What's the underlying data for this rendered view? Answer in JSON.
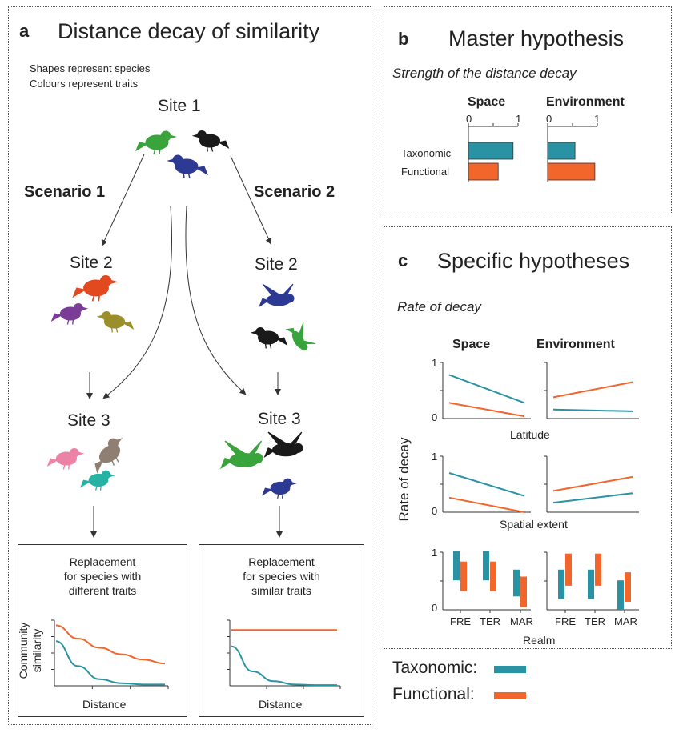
{
  "colors": {
    "taxonomic": "#2a93a3",
    "functional": "#f2652b",
    "species_green": "#39a33c",
    "species_navy": "#2c3a93",
    "species_black": "#1a1a1a",
    "species_red": "#e2491f",
    "species_purple": "#7a3c96",
    "species_olive": "#9a8f2a",
    "species_pink": "#ec82a6",
    "species_grey": "#8f7e72",
    "species_teal": "#27b2a4"
  },
  "panel_a": {
    "letter": "a",
    "title": "Distance decay of similarity",
    "note_shapes": "Shapes represent species",
    "note_colours": "Colours represent traits",
    "site1": "Site 1",
    "scenario1": "Scenario 1",
    "scenario2": "Scenario 2",
    "site2": "Site 2",
    "site3": "Site 3",
    "box1": {
      "title_lines": [
        "Replacement",
        "for species with",
        "different traits"
      ],
      "ylabel_lines": [
        "Community",
        "similarity"
      ],
      "xlabel": "Distance"
    },
    "box2": {
      "title_lines": [
        "Replacement",
        "for species with",
        "similar traits"
      ],
      "xlabel": "Distance"
    }
  },
  "panel_b": {
    "letter": "b",
    "title": "Master hypothesis",
    "subtitle": "Strength of the distance decay",
    "col_space": "Space",
    "col_env": "Environment",
    "row_tax": "Taxonomic",
    "row_fun": "Functional",
    "tick0": "0",
    "tick1": "1"
  },
  "panel_c": {
    "letter": "c",
    "title": "Specific hypotheses",
    "subtitle": "Rate of decay",
    "col_space": "Space",
    "col_env": "Environment",
    "ylabel": "Rate of decay",
    "xlabel_latitude": "Latitude",
    "xlabel_extent": "Spatial extent",
    "xlabel_realm": "Realm",
    "realms": [
      "FRE",
      "TER",
      "MAR"
    ],
    "tick0": "0",
    "tick1": "1"
  },
  "legend": {
    "taxonomic": "Taxonomic:",
    "functional": "Functional:"
  },
  "chart_data": [
    {
      "type": "line",
      "panel": "a",
      "scenario": "Replacement for species with different traits",
      "ylabel": "Community similarity",
      "xlabel": "Distance",
      "x": [
        0,
        0.2,
        0.4,
        0.6,
        0.8,
        1.0
      ],
      "series": [
        {
          "name": "Functional",
          "values": [
            0.92,
            0.72,
            0.58,
            0.48,
            0.4,
            0.34
          ]
        },
        {
          "name": "Taxonomic",
          "values": [
            0.68,
            0.3,
            0.1,
            0.04,
            0.02,
            0.02
          ]
        }
      ]
    },
    {
      "type": "line",
      "panel": "a",
      "scenario": "Replacement for species with similar traits",
      "xlabel": "Distance",
      "x": [
        0,
        0.2,
        0.4,
        0.6,
        0.8,
        1.0
      ],
      "series": [
        {
          "name": "Functional",
          "values": [
            0.85,
            0.85,
            0.85,
            0.85,
            0.85,
            0.85
          ]
        },
        {
          "name": "Taxonomic",
          "values": [
            0.6,
            0.22,
            0.07,
            0.02,
            0.01,
            0.01
          ]
        }
      ]
    },
    {
      "type": "bar",
      "panel": "b",
      "facet": "Space",
      "categories": [
        "Taxonomic",
        "Functional"
      ],
      "values": [
        0.9,
        0.6
      ],
      "xlim": [
        0,
        1
      ]
    },
    {
      "type": "bar",
      "panel": "b",
      "facet": "Environment",
      "categories": [
        "Taxonomic",
        "Functional"
      ],
      "values": [
        0.55,
        0.95
      ],
      "xlim": [
        0,
        1
      ]
    },
    {
      "type": "line",
      "panel": "c",
      "facet": "Space",
      "xlabel": "Latitude",
      "ylim": [
        0,
        1
      ],
      "series": [
        {
          "name": "Taxonomic",
          "start": 0.78,
          "end": 0.28
        },
        {
          "name": "Functional",
          "start": 0.28,
          "end": 0.04
        }
      ]
    },
    {
      "type": "line",
      "panel": "c",
      "facet": "Environment",
      "xlabel": "Latitude",
      "ylim": [
        0,
        1
      ],
      "series": [
        {
          "name": "Taxonomic",
          "start": 0.16,
          "end": 0.13
        },
        {
          "name": "Functional",
          "start": 0.38,
          "end": 0.65
        }
      ]
    },
    {
      "type": "line",
      "panel": "c",
      "facet": "Space",
      "xlabel": "Spatial extent",
      "ylim": [
        0,
        1
      ],
      "series": [
        {
          "name": "Taxonomic",
          "start": 0.7,
          "end": 0.29
        },
        {
          "name": "Functional",
          "start": 0.26,
          "end": 0.0
        }
      ]
    },
    {
      "type": "line",
      "panel": "c",
      "facet": "Environment",
      "xlabel": "Spatial extent",
      "ylim": [
        0,
        1
      ],
      "series": [
        {
          "name": "Taxonomic",
          "start": 0.17,
          "end": 0.34
        },
        {
          "name": "Functional",
          "start": 0.38,
          "end": 0.63
        }
      ]
    },
    {
      "type": "bar",
      "panel": "c",
      "facet": "Space",
      "xlabel": "Realm",
      "categories": [
        "FRE",
        "TER",
        "MAR"
      ],
      "ylim": [
        0,
        1
      ],
      "series": [
        {
          "name": "Taxonomic",
          "ranges": [
            [
              0.55,
              1.1
            ],
            [
              0.55,
              1.1
            ],
            [
              0.25,
              0.75
            ]
          ]
        },
        {
          "name": "Functional",
          "ranges": [
            [
              0.35,
              0.9
            ],
            [
              0.35,
              0.9
            ],
            [
              0.05,
              0.62
            ]
          ]
        }
      ]
    },
    {
      "type": "bar",
      "panel": "c",
      "facet": "Environment",
      "xlabel": "Realm",
      "categories": [
        "FRE",
        "TER",
        "MAR"
      ],
      "ylim": [
        0,
        1
      ],
      "series": [
        {
          "name": "Taxonomic",
          "ranges": [
            [
              0.2,
              0.75
            ],
            [
              0.2,
              0.75
            ],
            [
              0.0,
              0.55
            ]
          ]
        },
        {
          "name": "Functional",
          "ranges": [
            [
              0.45,
              1.05
            ],
            [
              0.45,
              1.05
            ],
            [
              0.15,
              0.7
            ]
          ]
        }
      ]
    }
  ]
}
